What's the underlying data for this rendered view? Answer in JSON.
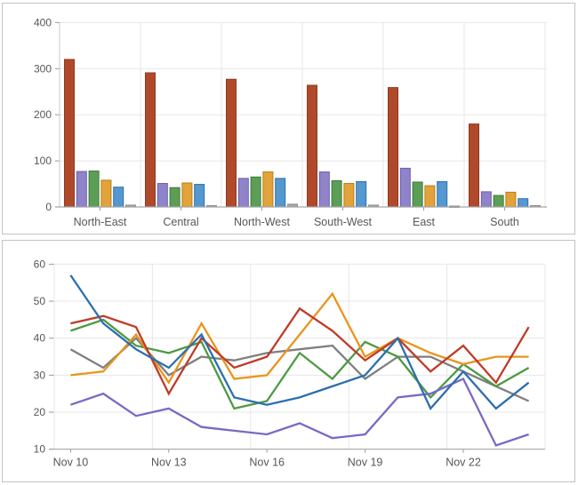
{
  "chart_data": [
    {
      "type": "bar",
      "title": "",
      "categories": [
        "North-East",
        "Central",
        "North-West",
        "South-West",
        "East",
        "South"
      ],
      "series": [
        {
          "name": "series-red",
          "fill": "#b0492a",
          "stroke": "#8e3a20",
          "values": [
            320,
            291,
            277,
            264,
            259,
            180
          ]
        },
        {
          "name": "series-purple",
          "fill": "#8f84c9",
          "stroke": "#6a5fae",
          "values": [
            77,
            51,
            62,
            76,
            84,
            33
          ]
        },
        {
          "name": "series-green",
          "fill": "#5d9e56",
          "stroke": "#3c7a36",
          "values": [
            78,
            42,
            65,
            57,
            54,
            25
          ]
        },
        {
          "name": "series-orange",
          "fill": "#e2a33b",
          "stroke": "#bc7c14",
          "values": [
            58,
            52,
            76,
            51,
            46,
            32
          ]
        },
        {
          "name": "series-blue",
          "fill": "#5598d0",
          "stroke": "#2e71ae",
          "values": [
            43,
            49,
            62,
            55,
            55,
            18
          ]
        },
        {
          "name": "series-gray",
          "fill": "#a6a6a6",
          "stroke": "#8c8c8c",
          "values": [
            4,
            3,
            6,
            4,
            2,
            3
          ]
        }
      ],
      "ylim": [
        0,
        400
      ],
      "yticks": [
        0,
        100,
        200,
        300,
        400
      ],
      "grid": true,
      "legend": "none"
    },
    {
      "type": "line",
      "title": "",
      "x": [
        "Nov 10",
        "Nov 11",
        "Nov 12",
        "Nov 13",
        "Nov 14",
        "Nov 15",
        "Nov 16",
        "Nov 17",
        "Nov 18",
        "Nov 19",
        "Nov 20",
        "Nov 21",
        "Nov 22",
        "Nov 23",
        "Nov 24"
      ],
      "x_tick_labels": [
        "Nov 10",
        "Nov 13",
        "Nov 16",
        "Nov 19",
        "Nov 22"
      ],
      "series": [
        {
          "name": "line-gray",
          "color": "#7f7f7f",
          "values": [
            37,
            32,
            40,
            30,
            35,
            34,
            36,
            37,
            38,
            29,
            35,
            35,
            31,
            27,
            23
          ]
        },
        {
          "name": "line-green",
          "color": "#4d9a44",
          "values": [
            42,
            45,
            38,
            36,
            39,
            21,
            23,
            36,
            29,
            39,
            35,
            24,
            33,
            27,
            32
          ]
        },
        {
          "name": "line-orange",
          "color": "#e8951c",
          "values": [
            30,
            31,
            41,
            28,
            44,
            29,
            30,
            41,
            52,
            35,
            40,
            36,
            33,
            35,
            35
          ]
        },
        {
          "name": "line-red",
          "color": "#bf3b28",
          "values": [
            44,
            46,
            43,
            25,
            40,
            32,
            35,
            48,
            42,
            34,
            40,
            31,
            38,
            28,
            43
          ]
        },
        {
          "name": "line-purple",
          "color": "#7a68c5",
          "values": [
            22,
            25,
            19,
            21,
            16,
            15,
            14,
            17,
            13,
            14,
            24,
            25,
            29,
            11,
            14
          ]
        },
        {
          "name": "line-blue",
          "color": "#2c6fad",
          "values": [
            57,
            44,
            37,
            32,
            41,
            24,
            22,
            24,
            27,
            30,
            40,
            21,
            31,
            21,
            28
          ]
        }
      ],
      "ylim": [
        10,
        60
      ],
      "yticks": [
        10,
        20,
        30,
        40,
        50,
        60
      ],
      "grid": true,
      "legend": "none"
    }
  ],
  "colors": {
    "grid": "#e7e7e7",
    "axis": "#a6a6a6",
    "tick": "#9a9a9a",
    "label": "#54575c",
    "panel_border": "#c2c2c2"
  }
}
